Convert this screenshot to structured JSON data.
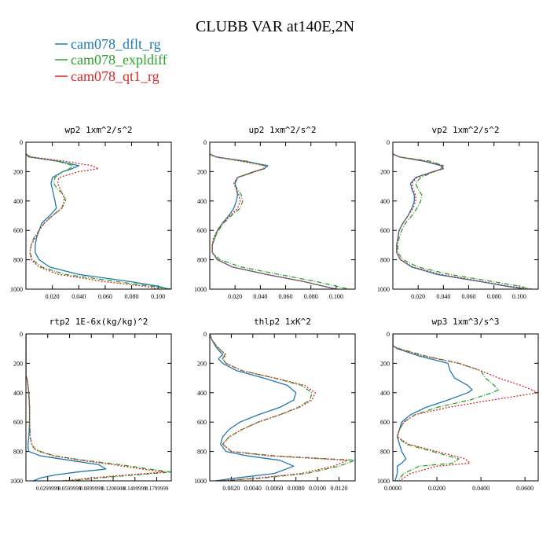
{
  "figure": {
    "title": "CLUBB VAR at140E,2N",
    "legend": [
      {
        "label": "cam078_dflt_rg",
        "color": "#1f77b4",
        "dash": "solid"
      },
      {
        "label": "cam078_expldiff",
        "color": "#2ca02c",
        "dash": "dashdot"
      },
      {
        "label": "cam078_qt1_rg",
        "color": "#d62728",
        "dash": "dotted"
      }
    ]
  },
  "chart_data": [
    {
      "type": "line",
      "title": "wp2  1xm^2/s^2",
      "xlim": [
        0,
        0.11
      ],
      "ylim": [
        1000,
        0
      ],
      "xticks": [
        0.02,
        0.04,
        0.06,
        0.08,
        0.1
      ],
      "xtick_labels": [
        "0.020",
        "0.040",
        "0.060",
        "0.080",
        "0.100"
      ],
      "yticks": [
        0,
        200,
        400,
        600,
        800,
        1000
      ],
      "ytick_labels": [
        "0",
        "200",
        "400",
        "600",
        "800",
        "1000"
      ],
      "y": [
        80,
        100,
        130,
        160,
        180,
        200,
        240,
        280,
        320,
        360,
        400,
        450,
        500,
        550,
        600,
        650,
        700,
        750,
        800,
        850,
        900,
        950,
        980,
        1000
      ],
      "series": [
        {
          "name": "cam078_dflt_rg",
          "values": [
            0,
            0.002,
            0.025,
            0.04,
            0.035,
            0.028,
            0.02,
            0.019,
            0.02,
            0.021,
            0.022,
            0.023,
            0.018,
            0.012,
            0.01,
            0.008,
            0.007,
            0.007,
            0.01,
            0.018,
            0.04,
            0.08,
            0.1,
            0.108
          ]
        },
        {
          "name": "cam078_expldiff",
          "values": [
            0,
            0.003,
            0.024,
            0.036,
            0.033,
            0.028,
            0.022,
            0.021,
            0.024,
            0.029,
            0.03,
            0.027,
            0.02,
            0.014,
            0.01,
            0.006,
            0.004,
            0.003,
            0.005,
            0.012,
            0.03,
            0.07,
            0.095,
            0.11
          ]
        },
        {
          "name": "cam078_qt1_rg",
          "values": [
            0,
            0.004,
            0.03,
            0.05,
            0.055,
            0.04,
            0.025,
            0.024,
            0.026,
            0.028,
            0.029,
            0.027,
            0.02,
            0.014,
            0.01,
            0.007,
            0.004,
            0.003,
            0.004,
            0.01,
            0.025,
            0.06,
            0.09,
            0.1
          ]
        }
      ]
    },
    {
      "type": "line",
      "title": "up2  1xm^2/s^2",
      "xlim": [
        0,
        0.115
      ],
      "ylim": [
        1000,
        0
      ],
      "xticks": [
        0.02,
        0.04,
        0.06,
        0.08,
        0.1
      ],
      "xtick_labels": [
        "0.020",
        "0.040",
        "0.060",
        "0.080",
        "0.100"
      ],
      "yticks": [
        0,
        200,
        400,
        600,
        800,
        1000
      ],
      "ytick_labels": [
        "0",
        "200",
        "400",
        "600",
        "800",
        "1000"
      ],
      "y": [
        80,
        100,
        130,
        160,
        180,
        200,
        240,
        280,
        320,
        360,
        400,
        450,
        500,
        550,
        600,
        650,
        700,
        750,
        800,
        850,
        900,
        950,
        980,
        1000
      ],
      "series": [
        {
          "name": "cam078_dflt_rg",
          "values": [
            0,
            0.005,
            0.028,
            0.046,
            0.043,
            0.035,
            0.022,
            0.02,
            0.021,
            0.022,
            0.021,
            0.019,
            0.015,
            0.01,
            0.006,
            0.004,
            0.002,
            0.002,
            0.006,
            0.018,
            0.045,
            0.075,
            0.09,
            0.1
          ]
        },
        {
          "name": "cam078_expldiff",
          "values": [
            0,
            0.004,
            0.03,
            0.043,
            0.042,
            0.036,
            0.022,
            0.019,
            0.022,
            0.025,
            0.026,
            0.024,
            0.017,
            0.011,
            0.007,
            0.004,
            0.002,
            0.002,
            0.008,
            0.025,
            0.055,
            0.085,
            0.1,
            0.11
          ]
        },
        {
          "name": "cam078_qt1_rg",
          "values": [
            0,
            0.005,
            0.025,
            0.044,
            0.043,
            0.036,
            0.022,
            0.019,
            0.021,
            0.023,
            0.024,
            0.022,
            0.016,
            0.01,
            0.006,
            0.003,
            0.002,
            0.002,
            0.006,
            0.018,
            0.045,
            0.075,
            0.09,
            0.1
          ]
        }
      ]
    },
    {
      "type": "line",
      "title": "vp2  1xm^2/s^2",
      "xlim": [
        0,
        0.115
      ],
      "ylim": [
        1000,
        0
      ],
      "xticks": [
        0.02,
        0.04,
        0.06,
        0.08,
        0.1
      ],
      "xtick_labels": [
        "0.020",
        "0.040",
        "0.060",
        "0.080",
        "0.100"
      ],
      "yticks": [
        0,
        200,
        400,
        600,
        800,
        1000
      ],
      "ytick_labels": [
        "0",
        "200",
        "400",
        "600",
        "800",
        "1000"
      ],
      "y": [
        80,
        100,
        130,
        160,
        180,
        200,
        240,
        280,
        320,
        360,
        400,
        450,
        500,
        550,
        600,
        650,
        700,
        750,
        800,
        850,
        900,
        950,
        980,
        1000
      ],
      "series": [
        {
          "name": "cam078_dflt_rg",
          "values": [
            0,
            0.005,
            0.025,
            0.038,
            0.04,
            0.032,
            0.018,
            0.014,
            0.015,
            0.017,
            0.017,
            0.015,
            0.012,
            0.008,
            0.005,
            0.004,
            0.003,
            0.003,
            0.006,
            0.015,
            0.035,
            0.07,
            0.09,
            0.105
          ]
        },
        {
          "name": "cam078_expldiff",
          "values": [
            0,
            0.005,
            0.03,
            0.04,
            0.038,
            0.033,
            0.022,
            0.018,
            0.02,
            0.023,
            0.022,
            0.019,
            0.015,
            0.01,
            0.007,
            0.005,
            0.004,
            0.004,
            0.008,
            0.02,
            0.045,
            0.08,
            0.1,
            0.11
          ]
        },
        {
          "name": "cam078_qt1_rg",
          "values": [
            0,
            0.005,
            0.027,
            0.04,
            0.039,
            0.032,
            0.019,
            0.015,
            0.016,
            0.018,
            0.018,
            0.016,
            0.012,
            0.008,
            0.005,
            0.004,
            0.003,
            0.003,
            0.006,
            0.016,
            0.038,
            0.072,
            0.092,
            0.108
          ]
        }
      ]
    },
    {
      "type": "line",
      "title": "rtp2  1E-6x(kg/kg)^2",
      "xlim": [
        0,
        0.2
      ],
      "ylim": [
        1000,
        0
      ],
      "xticks": [
        0.03,
        0.06,
        0.09,
        0.12,
        0.15,
        0.18
      ],
      "xtick_labels": [
        "0.0299999",
        "0.0599999",
        "0.0899999",
        "0.1200000",
        "0.1499999",
        "0.1799999"
      ],
      "yticks": [
        0,
        200,
        400,
        600,
        800,
        1000
      ],
      "ytick_labels": [
        "0",
        "200",
        "400",
        "600",
        "800",
        "1000"
      ],
      "y": [
        0,
        280,
        320,
        400,
        500,
        600,
        700,
        750,
        780,
        800,
        830,
        860,
        890,
        920,
        940,
        960,
        980,
        1000
      ],
      "series": [
        {
          "name": "cam078_dflt_rg",
          "values": [
            0,
            0,
            0.002,
            0.004,
            0.005,
            0.005,
            0.004,
            0.003,
            0.003,
            0.004,
            0.02,
            0.06,
            0.1,
            0.11,
            0.07,
            0.04,
            0.02,
            0.01
          ]
        },
        {
          "name": "cam078_expldiff",
          "values": [
            0,
            0,
            0.002,
            0.004,
            0.005,
            0.005,
            0.006,
            0.008,
            0.012,
            0.02,
            0.04,
            0.08,
            0.13,
            0.17,
            0.2,
            0.15,
            0.1,
            0.06
          ]
        },
        {
          "name": "cam078_qt1_rg",
          "values": [
            0,
            0,
            0.002,
            0.004,
            0.005,
            0.005,
            0.006,
            0.008,
            0.011,
            0.018,
            0.038,
            0.075,
            0.12,
            0.16,
            0.19,
            0.14,
            0.09,
            0.05
          ]
        }
      ]
    },
    {
      "type": "line",
      "title": "thlp2  1xK^2",
      "xlim": [
        0,
        0.0135
      ],
      "ylim": [
        1000,
        0
      ],
      "xticks": [
        0.002,
        0.004,
        0.006,
        0.008,
        0.01,
        0.012
      ],
      "xtick_labels": [
        "0.0020",
        "0.0040",
        "0.0060",
        "0.0080",
        "0.0100",
        "0.0120"
      ],
      "yticks": [
        0,
        200,
        400,
        600,
        800,
        1000
      ],
      "ytick_labels": [
        "0",
        "200",
        "400",
        "600",
        "800",
        "1000"
      ],
      "y": [
        0,
        40,
        80,
        110,
        140,
        170,
        200,
        250,
        300,
        350,
        400,
        450,
        500,
        550,
        600,
        650,
        700,
        750,
        800,
        830,
        860,
        900,
        950,
        980,
        1000
      ],
      "series": [
        {
          "name": "cam078_dflt_rg",
          "values": [
            0,
            0.0002,
            0.0005,
            0.0008,
            0.0012,
            0.0008,
            0.0012,
            0.0025,
            0.005,
            0.0072,
            0.008,
            0.0078,
            0.0065,
            0.0045,
            0.0028,
            0.0018,
            0.0012,
            0.001,
            0.0015,
            0.0035,
            0.0065,
            0.0078,
            0.006,
            0.0025,
            0.0005
          ]
        },
        {
          "name": "cam078_expldiff",
          "values": [
            0,
            0.0002,
            0.0006,
            0.001,
            0.0014,
            0.0012,
            0.0015,
            0.003,
            0.006,
            0.0085,
            0.0095,
            0.0093,
            0.0082,
            0.0065,
            0.0045,
            0.003,
            0.0018,
            0.0012,
            0.002,
            0.006,
            0.0135,
            0.012,
            0.009,
            0.005,
            0.001
          ]
        },
        {
          "name": "cam078_qt1_rg",
          "values": [
            0,
            0.0002,
            0.0006,
            0.001,
            0.0015,
            0.0012,
            0.0015,
            0.003,
            0.006,
            0.0088,
            0.0098,
            0.0095,
            0.0083,
            0.0065,
            0.0045,
            0.003,
            0.0018,
            0.0012,
            0.002,
            0.0055,
            0.0128,
            0.0115,
            0.0085,
            0.0045,
            0.001
          ]
        }
      ]
    },
    {
      "type": "line",
      "title": "wp3  1xm^3/s^3",
      "xlim": [
        0,
        0.066
      ],
      "ylim": [
        1000,
        0
      ],
      "xticks": [
        0,
        0.02,
        0.04,
        0.06
      ],
      "xtick_labels": [
        "0.0000",
        "0.0200",
        "0.0400",
        "0.0600"
      ],
      "yticks": [
        0,
        200,
        400,
        600,
        800,
        1000
      ],
      "ytick_labels": [
        "0",
        "200",
        "400",
        "600",
        "800",
        "1000"
      ],
      "y": [
        0,
        80,
        100,
        150,
        200,
        250,
        300,
        350,
        380,
        400,
        450,
        500,
        550,
        600,
        650,
        700,
        750,
        800,
        850,
        880,
        900,
        950,
        1000
      ],
      "series": [
        {
          "name": "cam078_dflt_rg",
          "values": [
            0,
            0,
            0.002,
            0.012,
            0.025,
            0.026,
            0.028,
            0.034,
            0.036,
            0.034,
            0.025,
            0.015,
            0.008,
            0.004,
            0.003,
            0.002,
            0.003,
            0.004,
            0.006,
            0.004,
            0.002,
            0.002,
            0.001
          ]
        },
        {
          "name": "cam078_expldiff",
          "values": [
            0,
            0,
            0.003,
            0.015,
            0.03,
            0.04,
            0.042,
            0.046,
            0.048,
            0.045,
            0.035,
            0.02,
            0.01,
            0.005,
            0.003,
            0.002,
            0.006,
            0.018,
            0.03,
            0.027,
            0.012,
            0.005,
            0.002
          ]
        },
        {
          "name": "cam078_qt1_rg",
          "values": [
            0,
            0,
            0.002,
            0.014,
            0.03,
            0.04,
            0.048,
            0.058,
            0.063,
            0.066,
            0.045,
            0.025,
            0.01,
            0.005,
            0.003,
            0.002,
            0.007,
            0.02,
            0.033,
            0.035,
            0.02,
            0.008,
            0.003
          ]
        }
      ]
    }
  ]
}
